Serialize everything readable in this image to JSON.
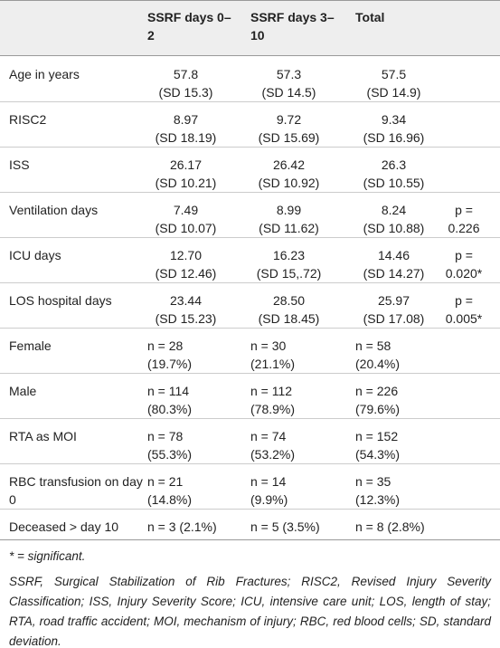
{
  "table": {
    "header": [
      "",
      "SSRF days 0–2",
      "SSRF days 3–10",
      "Total",
      ""
    ],
    "rows": [
      {
        "label": "Age in years",
        "cells": [
          [
            "57.8",
            "(SD 15.3)"
          ],
          [
            "57.3",
            "(SD 14.5)"
          ],
          [
            "57.5",
            "(SD 14.9)"
          ]
        ]
      },
      {
        "label": "RISC2",
        "cells": [
          [
            "8.97",
            "(SD 18.19)"
          ],
          [
            "9.72",
            "(SD 15.69)"
          ],
          [
            "9.34",
            "(SD 16.96)"
          ]
        ]
      },
      {
        "label": "ISS",
        "cells": [
          [
            "26.17",
            "(SD 10.21)"
          ],
          [
            "26.42",
            "(SD 10.92)"
          ],
          [
            "26.3",
            "(SD 10.55)"
          ]
        ]
      },
      {
        "label": "Ventilation days",
        "cells": [
          [
            "7.49",
            "(SD 10.07)"
          ],
          [
            "8.99",
            "(SD 11.62)"
          ],
          [
            "8.24",
            "(SD 10.88)"
          ]
        ],
        "p": [
          "p =",
          "0.226"
        ]
      },
      {
        "label": "ICU days",
        "cells": [
          [
            "12.70",
            "(SD 12.46)"
          ],
          [
            "16.23",
            "(SD 15,.72)"
          ],
          [
            "14.46",
            "(SD 14.27)"
          ]
        ],
        "p": [
          "p =",
          "0.020*"
        ]
      },
      {
        "label": "LOS hospital days",
        "cells": [
          [
            "23.44",
            "(SD 15.23)"
          ],
          [
            "28.50",
            "(SD 18.45)"
          ],
          [
            "25.97",
            "(SD 17.08)"
          ]
        ],
        "p": [
          "p =",
          "0.005*"
        ]
      },
      {
        "label": "Female",
        "cells": [
          [
            "n = 28",
            "(19.7%)"
          ],
          [
            "n = 30",
            "(21.1%)"
          ],
          [
            "n = 58",
            "(20.4%)"
          ]
        ]
      },
      {
        "label": "Male",
        "cells": [
          [
            "n = 114",
            "(80.3%)"
          ],
          [
            "n = 112",
            "(78.9%)"
          ],
          [
            "n = 226",
            "(79.6%)"
          ]
        ]
      },
      {
        "label": "RTA as MOI",
        "cells": [
          [
            "n = 78",
            "(55.3%)"
          ],
          [
            "n = 74",
            "(53.2%)"
          ],
          [
            "n = 152",
            "(54.3%)"
          ]
        ]
      },
      {
        "label": "RBC transfusion on day 0",
        "cells": [
          [
            "n = 21",
            "(14.8%)"
          ],
          [
            "n = 14",
            "(9.9%)"
          ],
          [
            "n = 35",
            "(12.3%)"
          ]
        ]
      },
      {
        "label": "Deceased > day 10",
        "cells": [
          [
            "n = 3 (2.1%)"
          ],
          [
            "n = 5 (3.5%)"
          ],
          [
            "n = 8 (2.8%)"
          ]
        ]
      }
    ]
  },
  "footnotes": [
    "* = significant.",
    "SSRF, Surgical Stabilization of Rib Fractures; RISC2, Revised Injury Severity Classification; ISS, Injury Severity Score; ICU, intensive care unit; LOS, length of stay; RTA, road traffic accident; MOI, mechanism of injury; RBC, red blood cells; SD, standard deviation."
  ]
}
